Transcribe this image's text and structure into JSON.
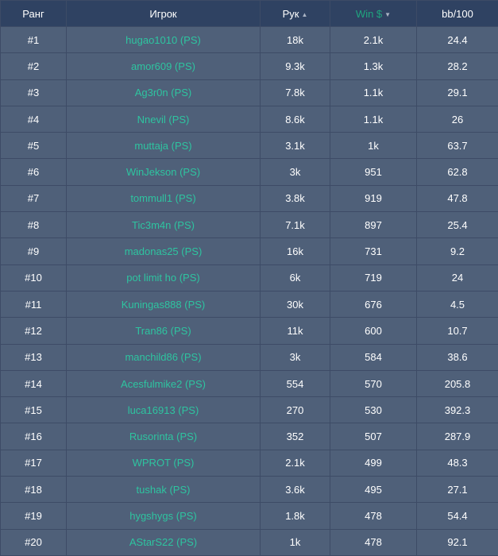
{
  "columns": {
    "rank": "Ранг",
    "player": "Игрок",
    "hands": "Рук",
    "win": "Win $",
    "bb100": "bb/100"
  },
  "sort": {
    "hands_icon": "sort-up",
    "win_icon": "sort-down"
  },
  "colors": {
    "header_bg": "#2f4262",
    "row_bg": "#4f6079",
    "link": "#2ec4a0",
    "active_header": "#1fa67f"
  },
  "rows": [
    {
      "rank": "#1",
      "player": "hugao1010 (PS)",
      "hands": "18k",
      "win": "2.1k",
      "bb100": "24.4"
    },
    {
      "rank": "#2",
      "player": "amor609 (PS)",
      "hands": "9.3k",
      "win": "1.3k",
      "bb100": "28.2"
    },
    {
      "rank": "#3",
      "player": "Ag3r0n (PS)",
      "hands": "7.8k",
      "win": "1.1k",
      "bb100": "29.1"
    },
    {
      "rank": "#4",
      "player": "Nnevil (PS)",
      "hands": "8.6k",
      "win": "1.1k",
      "bb100": "26"
    },
    {
      "rank": "#5",
      "player": "muttaja (PS)",
      "hands": "3.1k",
      "win": "1k",
      "bb100": "63.7"
    },
    {
      "rank": "#6",
      "player": "WinJekson (PS)",
      "hands": "3k",
      "win": "951",
      "bb100": "62.8"
    },
    {
      "rank": "#7",
      "player": "tommull1 (PS)",
      "hands": "3.8k",
      "win": "919",
      "bb100": "47.8"
    },
    {
      "rank": "#8",
      "player": "Tic3m4n (PS)",
      "hands": "7.1k",
      "win": "897",
      "bb100": "25.4"
    },
    {
      "rank": "#9",
      "player": "madonas25 (PS)",
      "hands": "16k",
      "win": "731",
      "bb100": "9.2"
    },
    {
      "rank": "#10",
      "player": "pot limit ho (PS)",
      "hands": "6k",
      "win": "719",
      "bb100": "24"
    },
    {
      "rank": "#11",
      "player": "Kuningas888 (PS)",
      "hands": "30k",
      "win": "676",
      "bb100": "4.5"
    },
    {
      "rank": "#12",
      "player": "Tran86 (PS)",
      "hands": "11k",
      "win": "600",
      "bb100": "10.7"
    },
    {
      "rank": "#13",
      "player": "manchild86 (PS)",
      "hands": "3k",
      "win": "584",
      "bb100": "38.6"
    },
    {
      "rank": "#14",
      "player": "Acesfulmike2 (PS)",
      "hands": "554",
      "win": "570",
      "bb100": "205.8"
    },
    {
      "rank": "#15",
      "player": "luca16913 (PS)",
      "hands": "270",
      "win": "530",
      "bb100": "392.3"
    },
    {
      "rank": "#16",
      "player": "Rusorinta (PS)",
      "hands": "352",
      "win": "507",
      "bb100": "287.9"
    },
    {
      "rank": "#17",
      "player": "WPROT (PS)",
      "hands": "2.1k",
      "win": "499",
      "bb100": "48.3"
    },
    {
      "rank": "#18",
      "player": "tushak (PS)",
      "hands": "3.6k",
      "win": "495",
      "bb100": "27.1"
    },
    {
      "rank": "#19",
      "player": "hygshygs (PS)",
      "hands": "1.8k",
      "win": "478",
      "bb100": "54.4"
    },
    {
      "rank": "#20",
      "player": "AStarS22 (PS)",
      "hands": "1k",
      "win": "478",
      "bb100": "92.1"
    }
  ]
}
